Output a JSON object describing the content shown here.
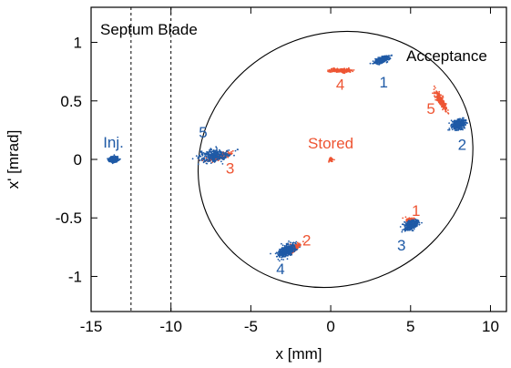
{
  "chart_data": {
    "type": "scatter",
    "xlabel": "x [mm]",
    "ylabel": "x' [mrad]",
    "xlim": [
      -15,
      11
    ],
    "ylim": [
      -1.3,
      1.3
    ],
    "x_ticks": [
      -15,
      -10,
      -5,
      0,
      5,
      10
    ],
    "y_ticks": [
      -1,
      -0.5,
      0,
      0.5,
      1
    ],
    "x_tick_labels": [
      "-15",
      "-10",
      "-5",
      "0",
      "5",
      "10"
    ],
    "y_tick_labels": [
      "-1",
      "-0.5",
      "0",
      "0.5",
      "1"
    ],
    "grid": false,
    "colors": {
      "injected": "#1f5aa6",
      "stored": "#ee5533",
      "axes": "#000000"
    },
    "septum_lines_x": [
      -12.5,
      -10
    ],
    "acceptance_ellipse": {
      "center": [
        0.3,
        0
      ],
      "semi_x": 10.3,
      "semi_y": 1.05,
      "tilt_deg": 25
    },
    "annotations": {
      "septum_label": "Septum Blade",
      "acceptance_label": "Acceptance",
      "stored_label": "Stored",
      "injected_label": "Inj."
    },
    "injected_clusters": [
      {
        "label": "Inj.",
        "x": -13.6,
        "y": 0.0
      },
      {
        "label": "1",
        "x": 3.2,
        "y": 0.85
      },
      {
        "label": "2",
        "x": 8.0,
        "y": 0.3
      },
      {
        "label": "3",
        "x": 5.0,
        "y": -0.56
      },
      {
        "label": "4",
        "x": -2.8,
        "y": -0.78
      },
      {
        "label": "5",
        "x": -7.3,
        "y": 0.03
      }
    ],
    "stored_clusters": [
      {
        "label": "Stored",
        "x": 0.0,
        "y": 0.0
      },
      {
        "label": "1",
        "x": 5.0,
        "y": -0.52
      },
      {
        "label": "2",
        "x": -2.3,
        "y": -0.76
      },
      {
        "label": "3",
        "x": -7.1,
        "y": 0.02
      },
      {
        "label": "4",
        "x": 0.6,
        "y": 0.76
      },
      {
        "label": "5",
        "x": 6.9,
        "y": 0.5
      }
    ]
  }
}
